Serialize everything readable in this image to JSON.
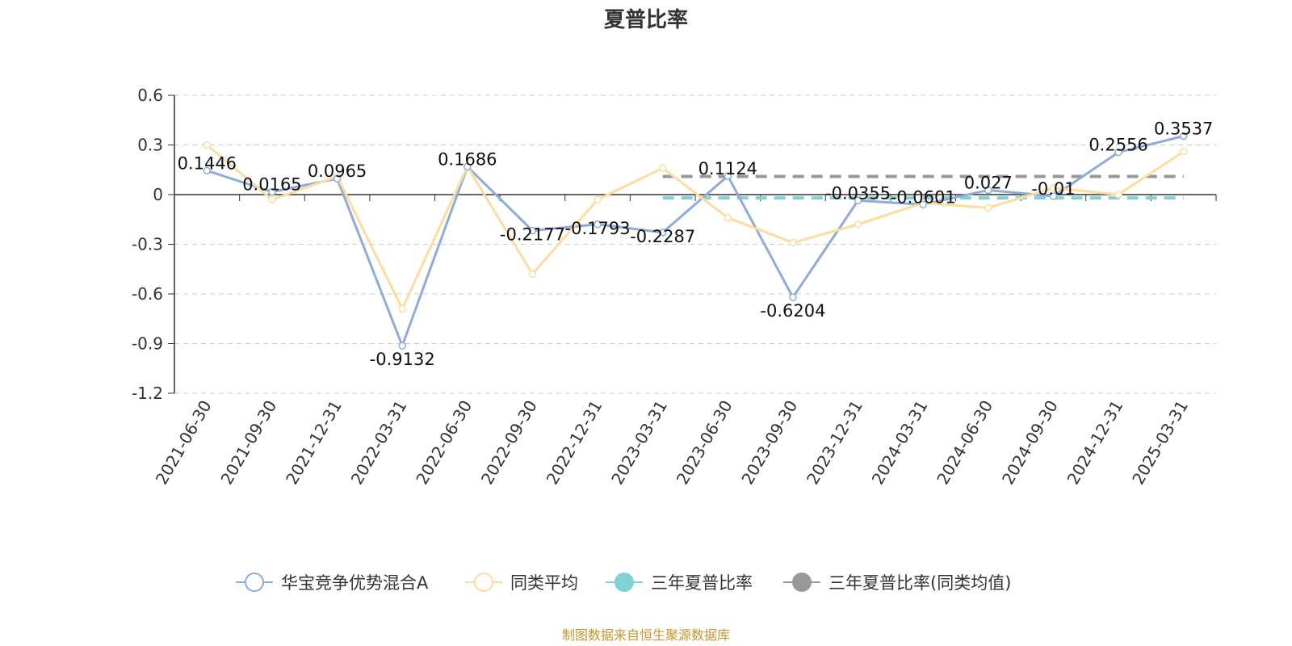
{
  "chart_data": {
    "type": "line",
    "title": "夏普比率",
    "categories": [
      "2021-06-30",
      "2021-09-30",
      "2021-12-31",
      "2022-03-31",
      "2022-06-30",
      "2022-09-30",
      "2022-12-31",
      "2023-03-31",
      "2023-06-30",
      "2023-09-30",
      "2023-12-31",
      "2024-03-31",
      "2024-06-30",
      "2024-09-30",
      "2024-12-31",
      "2025-03-31"
    ],
    "ylim": [
      -1.2,
      0.6
    ],
    "yticks": [
      "0.6",
      "0.3",
      "0",
      "-0.3",
      "-0.6",
      "-0.9",
      "-1.2"
    ],
    "grid": true,
    "legend_position": "bottom",
    "series": [
      {
        "name": "华宝竞争优势混合A",
        "color": "#8eacd9",
        "values": [
          0.1446,
          0.0165,
          0.0965,
          -0.9132,
          0.1686,
          -0.2177,
          -0.1793,
          -0.2287,
          0.1124,
          -0.6204,
          -0.0355,
          -0.0601,
          0.027,
          -0.01,
          0.2556,
          0.3537
        ],
        "labels": [
          "0.1446",
          "0.0165",
          "0.0965",
          "-0.9132",
          "0.1686",
          "-0.2177",
          "-0.1793",
          "-0.2287",
          "0.1124",
          "-0.6204",
          "-0.0355",
          "-0.0601",
          "0.027",
          "-0.01",
          "0.2556",
          "0.3537"
        ]
      },
      {
        "name": "同类平均",
        "color": "#fddd9f",
        "values": [
          0.3,
          -0.03,
          0.11,
          -0.69,
          0.17,
          -0.48,
          -0.03,
          0.16,
          -0.14,
          -0.29,
          -0.18,
          -0.05,
          -0.08,
          0.04,
          0.0,
          0.26
        ]
      },
      {
        "name": "三年夏普比率",
        "color": "#7fd3d4",
        "value": -0.02,
        "from_index": 7
      },
      {
        "name": "三年夏普比率(同类均值)",
        "color": "#999999",
        "value": 0.11,
        "from_index": 7
      }
    ]
  },
  "footer": {
    "source": "制图数据来自恒生聚源数据库"
  }
}
